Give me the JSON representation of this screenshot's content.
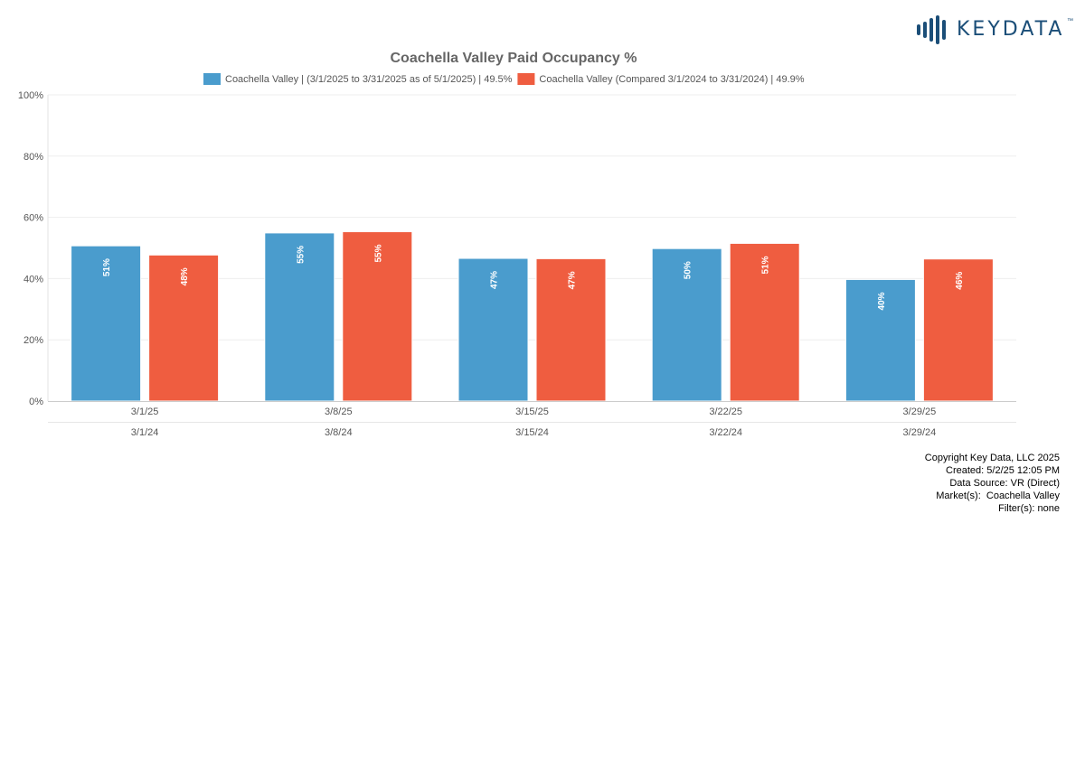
{
  "logo": {
    "text": "KEYDATA",
    "tm": "™",
    "color": "#1b4e78"
  },
  "chart_data": {
    "type": "bar",
    "title": "Coachella Valley Paid Occupancy %",
    "categories": [
      "3/1/25",
      "3/8/25",
      "3/15/25",
      "3/22/25",
      "3/29/25"
    ],
    "secondary_categories": [
      "3/1/24",
      "3/8/24",
      "3/15/24",
      "3/22/24",
      "3/29/24"
    ],
    "series": [
      {
        "name": "Coachella Valley | (3/1/2025 to 3/31/2025 as of 5/1/2025) | 49.5%",
        "color": "#4a9ccd",
        "values": [
          50.7,
          54.9,
          46.6,
          49.8,
          39.7
        ],
        "labels": [
          "51%",
          "55%",
          "47%",
          "50%",
          "40%"
        ]
      },
      {
        "name": "Coachella Valley (Compared 3/1/2024 to 3/31/2024) | 49.9%",
        "color": "#ef5d40",
        "values": [
          47.7,
          55.3,
          46.5,
          51.5,
          46.4
        ],
        "labels": [
          "48%",
          "55%",
          "47%",
          "51%",
          "46%"
        ]
      }
    ],
    "ylim": [
      0,
      100
    ],
    "yticks": [
      "0%",
      "20%",
      "40%",
      "60%",
      "80%",
      "100%"
    ],
    "ytick_values": [
      0,
      20,
      40,
      60,
      80,
      100
    ],
    "grid": true,
    "legend": "top"
  },
  "footer": {
    "lines": [
      "Copyright Key Data, LLC 2025",
      "Created: 5/2/25 12:05 PM",
      "Data Source: VR (Direct)",
      "Market(s):  Coachella Valley",
      "Filter(s): none"
    ]
  }
}
